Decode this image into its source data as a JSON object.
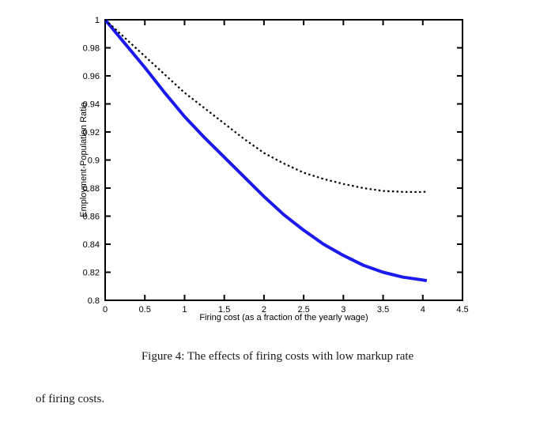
{
  "page": {
    "caption": "Figure 4: The effects of firing costs with low markup rate",
    "body_text": "of firing costs."
  },
  "chart_data": {
    "type": "line",
    "title": "",
    "xlabel": "Firing cost (as a fraction of the yearly wage)",
    "ylabel": "Employment-Population Ratio",
    "xlim": [
      0,
      4.5
    ],
    "ylim": [
      0.8,
      1.0
    ],
    "x_tick_labels": [
      "0",
      "0.5",
      "1",
      "1.5",
      "2",
      "2.5",
      "3",
      "3.5",
      "4",
      "4.5"
    ],
    "y_tick_labels": [
      "0.8",
      "0.82",
      "0.84",
      "0.86",
      "0.88",
      "0.9",
      "0.92",
      "0.94",
      "0.96",
      "0.98",
      "1"
    ],
    "grid": false,
    "frame": "box",
    "legend": "none",
    "axis_color": "#000000",
    "series": [
      {
        "name": "solid-blue-curve",
        "style": "solid",
        "color": "#1a1aee",
        "width": 4,
        "x": [
          0,
          0.25,
          0.5,
          0.75,
          1,
          1.25,
          1.5,
          1.75,
          2,
          2.25,
          2.5,
          2.75,
          3,
          3.25,
          3.5,
          3.75,
          4,
          4.05
        ],
        "y": [
          1.0,
          0.983,
          0.966,
          0.948,
          0.931,
          0.916,
          0.902,
          0.888,
          0.874,
          0.861,
          0.85,
          0.84,
          0.832,
          0.825,
          0.82,
          0.8165,
          0.8145,
          0.814
        ]
      },
      {
        "name": "dotted-black-curve",
        "style": "dotted",
        "color": "#000000",
        "width": 2.2,
        "x": [
          0,
          0.25,
          0.5,
          0.75,
          1,
          1.25,
          1.5,
          1.75,
          2,
          2.25,
          2.5,
          2.75,
          3,
          3.25,
          3.5,
          3.75,
          4,
          4.05
        ],
        "y": [
          1.0,
          0.987,
          0.974,
          0.961,
          0.948,
          0.937,
          0.926,
          0.915,
          0.905,
          0.8975,
          0.891,
          0.8865,
          0.883,
          0.88,
          0.878,
          0.8773,
          0.8772,
          0.8775
        ]
      }
    ]
  }
}
